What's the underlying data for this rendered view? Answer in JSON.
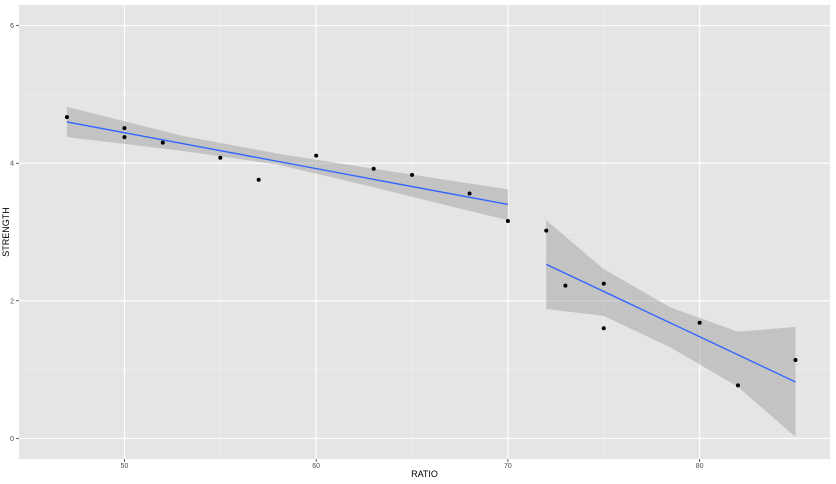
{
  "chart_data": {
    "type": "scatter",
    "title": "",
    "xlabel": "RATIO",
    "ylabel": "STRENGTH",
    "xlim": [
      44.5,
      86.8
    ],
    "ylim": [
      -0.3,
      6.3
    ],
    "x_ticks": [
      50,
      60,
      70,
      80
    ],
    "y_ticks": [
      0,
      2,
      4,
      6
    ],
    "x_tick_labels": [
      "50",
      "60",
      "70",
      "80"
    ],
    "y_tick_labels": [
      "0",
      "2",
      "4",
      "6"
    ],
    "grid": true,
    "legend": "none",
    "colors": {
      "panel_background": "#e5e5e5",
      "grid_major": "#ffffff",
      "grid_minor": "#f2f2f2",
      "points": "#000000",
      "fit_line": "#3366ff",
      "confidence_band": "#999999"
    },
    "points": [
      {
        "x": 47,
        "y": 4.67
      },
      {
        "x": 50,
        "y": 4.51
      },
      {
        "x": 50,
        "y": 4.38
      },
      {
        "x": 52,
        "y": 4.3
      },
      {
        "x": 55,
        "y": 4.08
      },
      {
        "x": 57,
        "y": 3.76
      },
      {
        "x": 60,
        "y": 4.11
      },
      {
        "x": 63,
        "y": 3.92
      },
      {
        "x": 65,
        "y": 3.83
      },
      {
        "x": 68,
        "y": 3.56
      },
      {
        "x": 70,
        "y": 3.16
      },
      {
        "x": 72,
        "y": 3.02
      },
      {
        "x": 73,
        "y": 2.22
      },
      {
        "x": 75,
        "y": 2.25
      },
      {
        "x": 75,
        "y": 1.6
      },
      {
        "x": 80,
        "y": 1.68
      },
      {
        "x": 82,
        "y": 0.77
      },
      {
        "x": 85,
        "y": 1.14
      }
    ],
    "fits": [
      {
        "x": [
          47,
          70
        ],
        "y": [
          4.6,
          3.4
        ],
        "band": [
          {
            "x": 47,
            "lower": 4.38,
            "upper": 4.82
          },
          {
            "x": 53,
            "lower": 4.18,
            "upper": 4.4
          },
          {
            "x": 58,
            "lower": 3.98,
            "upper": 4.14
          },
          {
            "x": 63,
            "lower": 3.65,
            "upper": 3.92
          },
          {
            "x": 70,
            "lower": 3.17,
            "upper": 3.62
          }
        ]
      },
      {
        "x": [
          72,
          85
        ],
        "y": [
          2.53,
          0.82
        ],
        "band": [
          {
            "x": 72,
            "lower": 1.88,
            "upper": 3.17
          },
          {
            "x": 75,
            "lower": 1.78,
            "upper": 2.46
          },
          {
            "x": 78.5,
            "lower": 1.32,
            "upper": 1.9
          },
          {
            "x": 82,
            "lower": 0.75,
            "upper": 1.55
          },
          {
            "x": 85,
            "lower": 0.02,
            "upper": 1.62
          }
        ]
      }
    ]
  }
}
